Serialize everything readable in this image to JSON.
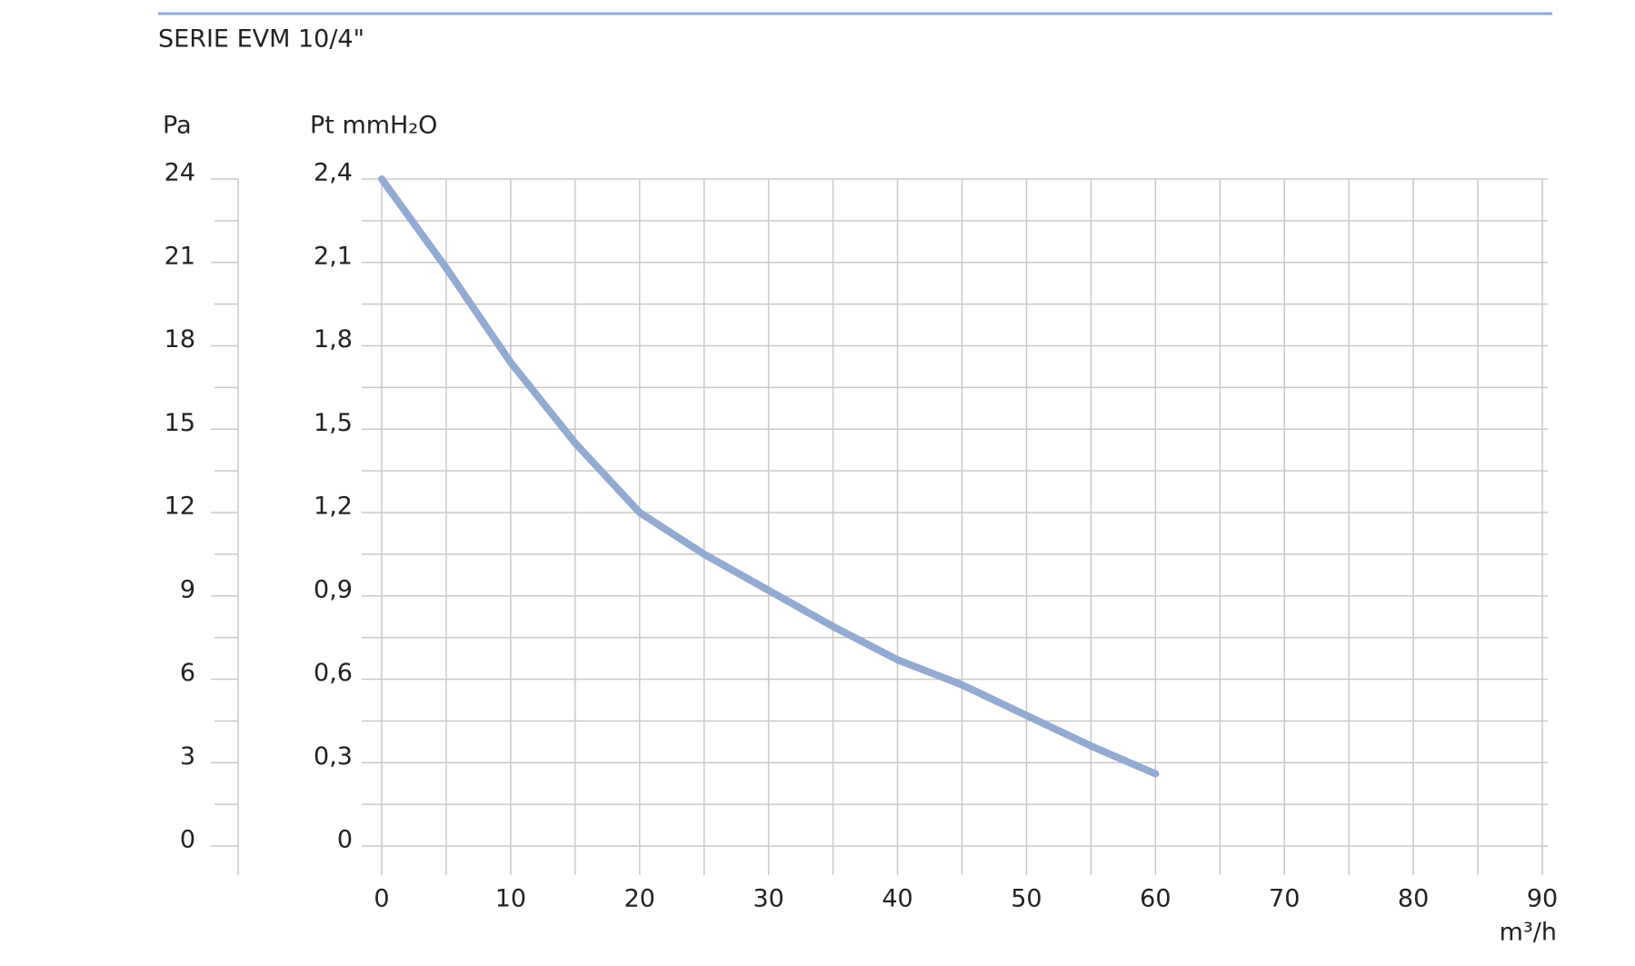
{
  "chart_data": {
    "type": "line",
    "title": "SERIE EVM 10/4\"",
    "ylabel": "Pt mmH₂O",
    "y2label": "Pa",
    "xlabel": "m³/h",
    "x": [
      0,
      5,
      10,
      15,
      20,
      25,
      30,
      35,
      40,
      45,
      50,
      55,
      60
    ],
    "series": [
      {
        "name": "EVM 10/4\"",
        "color": "#93aad2",
        "values": [
          2.4,
          2.08,
          1.74,
          1.45,
          1.2,
          1.05,
          0.92,
          0.79,
          0.67,
          0.58,
          0.47,
          0.36,
          0.26
        ]
      }
    ],
    "xlim": [
      0,
      90
    ],
    "xticks": [
      0,
      10,
      20,
      30,
      40,
      50,
      60,
      70,
      80,
      90
    ],
    "ylim": [
      0,
      2.4
    ],
    "yticks": [
      0,
      {
        "value": 0.3,
        "label": "0,3"
      },
      {
        "value": 0.6,
        "label": "0,6"
      },
      {
        "value": 0.9,
        "label": "0,9"
      },
      {
        "value": 1.2,
        "label": "1,2"
      },
      {
        "value": 1.5,
        "label": "1,5"
      },
      {
        "value": 1.8,
        "label": "1,8"
      },
      {
        "value": 2.1,
        "label": "2,1"
      },
      {
        "value": 2.4,
        "label": "2,4"
      }
    ],
    "y2lim": [
      0,
      24
    ],
    "y2ticks": [
      0,
      3,
      6,
      9,
      12,
      15,
      18,
      21,
      24
    ],
    "grid": true
  }
}
